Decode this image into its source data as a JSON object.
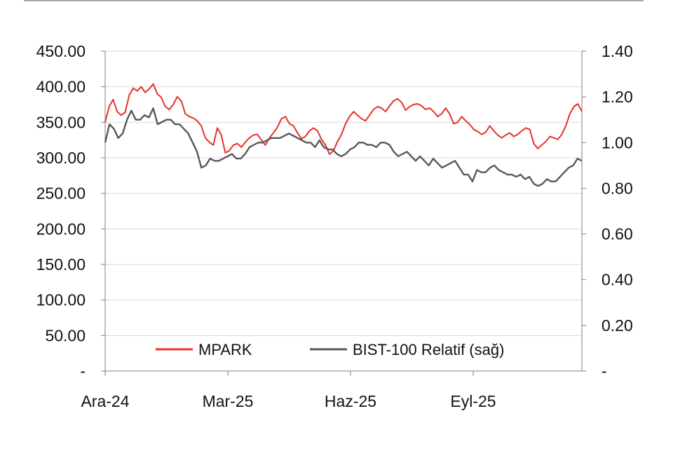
{
  "chart_data": {
    "type": "line",
    "title": "",
    "xlabel": "",
    "ylabel": "",
    "x_ticks": [
      "Ara-24",
      "Mar-25",
      "Haz-25",
      "Eyl-25"
    ],
    "y_left": {
      "range": [
        0,
        450
      ],
      "tick_labels": [
        "-",
        "50.00",
        "100.00",
        "150.00",
        "200.00",
        "250.00",
        "300.00",
        "350.00",
        "400.00",
        "450.00"
      ]
    },
    "y_right": {
      "range": [
        0,
        1.4
      ],
      "tick_labels": [
        "-",
        "0.20",
        "0.40",
        "0.60",
        "0.80",
        "1.00",
        "1.20",
        "1.40"
      ]
    },
    "grid": "horizontal",
    "legend_position": "bottom",
    "series": [
      {
        "name": "MPARK",
        "axis": "left",
        "color": "#e8312a",
        "values": [
          350,
          372,
          382,
          365,
          360,
          364,
          388,
          398,
          394,
          400,
          392,
          397,
          404,
          390,
          385,
          372,
          368,
          375,
          386,
          380,
          362,
          358,
          356,
          352,
          345,
          328,
          322,
          318,
          342,
          332,
          307,
          310,
          318,
          320,
          315,
          322,
          328,
          332,
          333,
          325,
          318,
          328,
          335,
          343,
          355,
          358,
          348,
          345,
          335,
          327,
          330,
          338,
          342,
          338,
          326,
          318,
          305,
          310,
          323,
          333,
          348,
          358,
          365,
          360,
          355,
          352,
          360,
          368,
          372,
          370,
          365,
          373,
          380,
          383,
          378,
          367,
          372,
          375,
          376,
          373,
          368,
          370,
          365,
          358,
          362,
          370,
          362,
          348,
          350,
          358,
          352,
          347,
          340,
          337,
          333,
          336,
          345,
          338,
          332,
          328,
          332,
          335,
          330,
          333,
          338,
          342,
          340,
          320,
          313,
          318,
          323,
          330,
          328,
          326,
          333,
          345,
          362,
          372,
          376,
          365
        ]
      },
      {
        "name": "BIST-100 Relatif (sağ)",
        "axis": "right",
        "color": "#595959",
        "values": [
          1.0,
          1.08,
          1.06,
          1.02,
          1.04,
          1.1,
          1.14,
          1.1,
          1.1,
          1.12,
          1.11,
          1.15,
          1.08,
          1.09,
          1.1,
          1.1,
          1.08,
          1.08,
          1.06,
          1.04,
          1.0,
          0.96,
          0.89,
          0.9,
          0.93,
          0.92,
          0.92,
          0.93,
          0.94,
          0.95,
          0.93,
          0.93,
          0.95,
          0.98,
          0.99,
          1.0,
          1.0,
          1.01,
          1.02,
          1.02,
          1.02,
          1.03,
          1.04,
          1.03,
          1.02,
          1.01,
          1.0,
          1.0,
          0.98,
          1.01,
          0.98,
          0.97,
          0.97,
          0.95,
          0.94,
          0.95,
          0.97,
          0.98,
          1.0,
          1.0,
          0.99,
          0.99,
          0.98,
          1.0,
          1.0,
          0.99,
          0.96,
          0.94,
          0.95,
          0.96,
          0.94,
          0.92,
          0.94,
          0.92,
          0.9,
          0.93,
          0.91,
          0.89,
          0.9,
          0.91,
          0.92,
          0.89,
          0.86,
          0.86,
          0.83,
          0.88,
          0.87,
          0.87,
          0.89,
          0.9,
          0.88,
          0.87,
          0.86,
          0.86,
          0.85,
          0.86,
          0.84,
          0.85,
          0.82,
          0.81,
          0.82,
          0.84,
          0.83,
          0.83,
          0.85,
          0.87,
          0.89,
          0.9,
          0.93,
          0.92
        ]
      }
    ]
  }
}
